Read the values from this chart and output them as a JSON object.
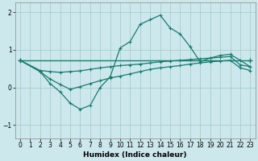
{
  "xlabel": "Humidex (Indice chaleur)",
  "background_color": "#cce8ec",
  "grid_color": "#aacccc",
  "line_color": "#1a7a6e",
  "xlim": [
    -0.5,
    23.5
  ],
  "ylim": [
    -1.35,
    2.25
  ],
  "yticks": [
    -1,
    0,
    1,
    2
  ],
  "xticks": [
    0,
    1,
    2,
    3,
    4,
    5,
    6,
    7,
    8,
    9,
    10,
    11,
    12,
    13,
    14,
    15,
    16,
    17,
    18,
    19,
    20,
    21,
    22,
    23
  ],
  "line1_x": [
    0,
    23
  ],
  "line1_y": [
    0.72,
    0.72
  ],
  "line2_x": [
    0,
    2,
    3,
    4,
    5,
    6,
    7,
    8,
    9,
    10,
    11,
    12,
    13,
    14,
    15,
    16,
    17,
    18,
    19,
    20,
    21,
    22,
    23
  ],
  "line2_y": [
    0.72,
    0.45,
    0.42,
    0.4,
    0.42,
    0.44,
    0.48,
    0.52,
    0.55,
    0.58,
    0.6,
    0.62,
    0.65,
    0.68,
    0.7,
    0.72,
    0.74,
    0.76,
    0.78,
    0.8,
    0.82,
    0.6,
    0.55
  ],
  "line3_x": [
    0,
    2,
    3,
    4,
    5,
    6,
    7,
    8,
    9,
    10,
    11,
    12,
    13,
    14,
    15,
    16,
    17,
    18,
    19,
    20,
    21,
    22,
    23
  ],
  "line3_y": [
    0.72,
    0.42,
    0.1,
    -0.12,
    -0.42,
    -0.58,
    -0.48,
    0.0,
    0.28,
    1.05,
    1.22,
    1.68,
    1.8,
    1.92,
    1.58,
    1.42,
    1.08,
    0.68,
    0.78,
    0.85,
    0.88,
    0.72,
    0.55
  ],
  "line4_x": [
    0,
    2,
    3,
    4,
    5,
    6,
    7,
    8,
    9,
    10,
    11,
    12,
    13,
    14,
    15,
    16,
    17,
    18,
    19,
    20,
    21,
    22,
    23
  ],
  "line4_y": [
    0.72,
    0.42,
    0.22,
    0.08,
    -0.05,
    0.02,
    0.1,
    0.18,
    0.25,
    0.3,
    0.36,
    0.42,
    0.48,
    0.52,
    0.55,
    0.58,
    0.62,
    0.65,
    0.68,
    0.7,
    0.72,
    0.52,
    0.45
  ]
}
